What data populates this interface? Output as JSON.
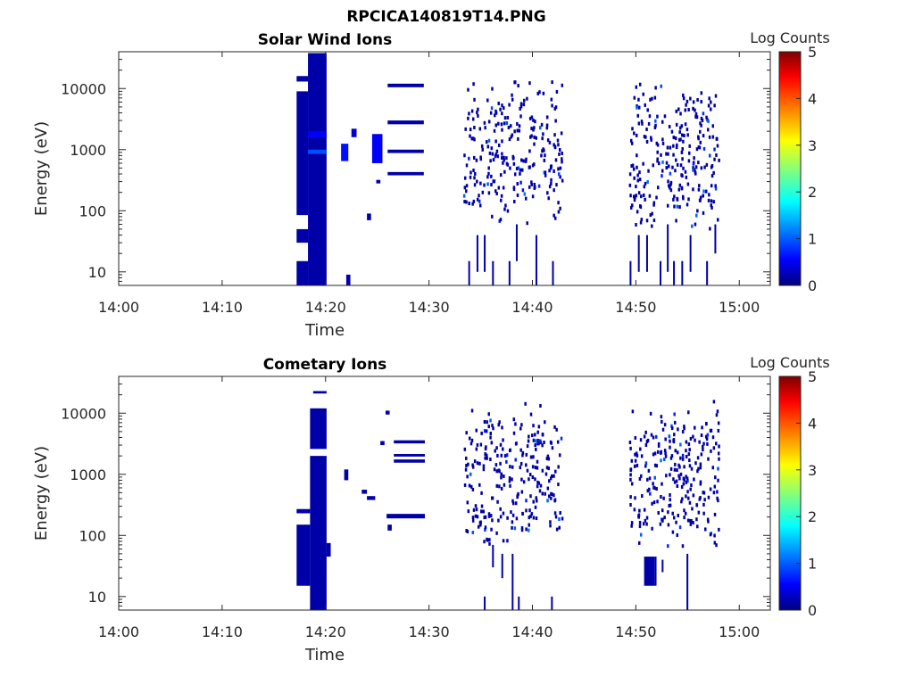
{
  "figure_title": "RPCICA140819T14.PNG",
  "chart_data": [
    {
      "type": "heatmap",
      "title": "Solar Wind Ions",
      "xlabel": "Time",
      "ylabel": "Energy (eV)",
      "x_tick_labels": [
        "14:00",
        "14:10",
        "14:20",
        "14:30",
        "14:40",
        "14:50",
        "15:00"
      ],
      "y_tick_labels": [
        "10",
        "100",
        "1000",
        "10000"
      ],
      "y_scale": "log",
      "xlim_minutes": [
        0,
        63
      ],
      "ylim_ev": [
        6,
        40000
      ],
      "colorbar": {
        "label": "Log Counts",
        "ticks": [
          "0",
          "1",
          "2",
          "3",
          "4",
          "5"
        ],
        "range": [
          0,
          5
        ],
        "colormap": "jet"
      },
      "cells": [
        {
          "t0": 17.2,
          "t1": 18.3,
          "e0": 6,
          "e1": 15,
          "v": 0.2
        },
        {
          "t0": 17.2,
          "t1": 18.3,
          "e0": 30,
          "e1": 50,
          "v": 0.2
        },
        {
          "t0": 17.2,
          "t1": 18.3,
          "e0": 85,
          "e1": 9000,
          "v": 0.2
        },
        {
          "t0": 17.2,
          "t1": 18.3,
          "e0": 13000,
          "e1": 16000,
          "v": 0.2
        },
        {
          "t0": 18.3,
          "t1": 20.1,
          "e0": 6,
          "e1": 38000,
          "v": 0.2
        },
        {
          "t0": 18.3,
          "t1": 20.1,
          "e0": 850,
          "e1": 1000,
          "v": 1.0
        },
        {
          "t0": 18.3,
          "t1": 20.1,
          "e0": 1600,
          "e1": 2000,
          "v": 0.6
        },
        {
          "t0": 21.5,
          "t1": 22.2,
          "e0": 650,
          "e1": 1250,
          "v": 0.7
        },
        {
          "t0": 22.5,
          "t1": 23.0,
          "e0": 1600,
          "e1": 2200,
          "v": 0.4
        },
        {
          "t0": 24.5,
          "t1": 25.5,
          "e0": 600,
          "e1": 1800,
          "v": 0.6
        },
        {
          "t0": 26.0,
          "t1": 29.5,
          "e0": 10500,
          "e1": 12000,
          "v": 0.2
        },
        {
          "t0": 26.0,
          "t1": 29.5,
          "e0": 2600,
          "e1": 3000,
          "v": 0.2
        },
        {
          "t0": 26.0,
          "t1": 29.5,
          "e0": 880,
          "e1": 1000,
          "v": 0.2
        },
        {
          "t0": 26.0,
          "t1": 29.5,
          "e0": 380,
          "e1": 430,
          "v": 0.2
        },
        {
          "t0": 22.0,
          "t1": 22.4,
          "e0": 6,
          "e1": 9,
          "v": 0.2
        },
        {
          "t0": 24.0,
          "t1": 24.4,
          "e0": 70,
          "e1": 90,
          "v": 0.2
        },
        {
          "t0": 24.9,
          "t1": 25.3,
          "e0": 280,
          "e1": 320,
          "v": 0.2
        }
      ],
      "scatter_regions": [
        {
          "t0": 33.3,
          "t1": 42.8,
          "seed": 11
        },
        {
          "t0": 49.3,
          "t1": 58.0,
          "seed": 29
        }
      ],
      "low_energy_streaks": [
        {
          "t": 33.8,
          "e0": 6,
          "e1": 15
        },
        {
          "t": 34.6,
          "e0": 10,
          "e1": 40
        },
        {
          "t": 35.3,
          "e0": 10,
          "e1": 40
        },
        {
          "t": 36.1,
          "e0": 6,
          "e1": 15
        },
        {
          "t": 37.7,
          "e0": 6,
          "e1": 15
        },
        {
          "t": 38.4,
          "e0": 15,
          "e1": 60
        },
        {
          "t": 40.3,
          "e0": 6,
          "e1": 40
        },
        {
          "t": 41.9,
          "e0": 6,
          "e1": 15
        },
        {
          "t": 49.4,
          "e0": 6,
          "e1": 15
        },
        {
          "t": 50.2,
          "e0": 10,
          "e1": 40
        },
        {
          "t": 51.0,
          "e0": 10,
          "e1": 40
        },
        {
          "t": 52.3,
          "e0": 6,
          "e1": 15
        },
        {
          "t": 53.0,
          "e0": 10,
          "e1": 60
        },
        {
          "t": 53.6,
          "e0": 6,
          "e1": 15
        },
        {
          "t": 54.4,
          "e0": 6,
          "e1": 15
        },
        {
          "t": 55.2,
          "e0": 10,
          "e1": 40
        },
        {
          "t": 56.8,
          "e0": 6,
          "e1": 15
        },
        {
          "t": 57.6,
          "e0": 20,
          "e1": 60
        }
      ]
    },
    {
      "type": "heatmap",
      "title": "Cometary Ions",
      "xlabel": "Time",
      "ylabel": "Energy (eV)",
      "x_tick_labels": [
        "14:00",
        "14:10",
        "14:20",
        "14:30",
        "14:40",
        "14:50",
        "15:00"
      ],
      "y_tick_labels": [
        "10",
        "100",
        "1000",
        "10000"
      ],
      "y_scale": "log",
      "xlim_minutes": [
        0,
        63
      ],
      "ylim_ev": [
        6,
        40000
      ],
      "colorbar": {
        "label": "Log Counts",
        "ticks": [
          "0",
          "1",
          "2",
          "3",
          "4",
          "5"
        ],
        "range": [
          0,
          5
        ],
        "colormap": "jet"
      },
      "cells": [
        {
          "t0": 17.2,
          "t1": 18.5,
          "e0": 15,
          "e1": 150,
          "v": 0.2
        },
        {
          "t0": 17.2,
          "t1": 18.5,
          "e0": 230,
          "e1": 270,
          "v": 0.2
        },
        {
          "t0": 18.5,
          "t1": 20.1,
          "e0": 6,
          "e1": 2000,
          "v": 0.2
        },
        {
          "t0": 18.5,
          "t1": 20.1,
          "e0": 2600,
          "e1": 12000,
          "v": 0.2
        },
        {
          "t0": 18.8,
          "t1": 20.1,
          "e0": 21000,
          "e1": 23000,
          "v": 0.2
        },
        {
          "t0": 20.1,
          "t1": 20.5,
          "e0": 45,
          "e1": 75,
          "v": 0.2
        },
        {
          "t0": 21.8,
          "t1": 22.2,
          "e0": 800,
          "e1": 1200,
          "v": 0.2
        },
        {
          "t0": 23.5,
          "t1": 24.0,
          "e0": 480,
          "e1": 560,
          "v": 0.2
        },
        {
          "t0": 24.0,
          "t1": 24.8,
          "e0": 380,
          "e1": 440,
          "v": 0.2
        },
        {
          "t0": 25.8,
          "t1": 26.2,
          "e0": 9500,
          "e1": 11000,
          "v": 0.2
        },
        {
          "t0": 25.3,
          "t1": 25.7,
          "e0": 3000,
          "e1": 3500,
          "v": 0.2
        },
        {
          "t0": 26.0,
          "t1": 26.4,
          "e0": 120,
          "e1": 150,
          "v": 0.2
        },
        {
          "t0": 26.6,
          "t1": 29.6,
          "e0": 3200,
          "e1": 3600,
          "v": 0.2
        },
        {
          "t0": 26.6,
          "t1": 29.6,
          "e0": 1950,
          "e1": 2150,
          "v": 0.2
        },
        {
          "t0": 26.6,
          "t1": 29.6,
          "e0": 1550,
          "e1": 1750,
          "v": 0.2
        },
        {
          "t0": 25.9,
          "t1": 29.6,
          "e0": 190,
          "e1": 225,
          "v": 0.2
        },
        {
          "t0": 50.8,
          "t1": 51.8,
          "e0": 15,
          "e1": 45,
          "v": 0.2
        },
        {
          "t0": 51.8,
          "t1": 52.0,
          "e0": 15,
          "e1": 45,
          "v": 0.2
        }
      ],
      "scatter_regions": [
        {
          "t0": 33.3,
          "t1": 42.8,
          "seed": 53
        },
        {
          "t0": 49.3,
          "t1": 58.0,
          "seed": 71
        }
      ],
      "low_energy_streaks": [
        {
          "t": 35.3,
          "e0": 6,
          "e1": 10
        },
        {
          "t": 36.1,
          "e0": 30,
          "e1": 70
        },
        {
          "t": 37.0,
          "e0": 20,
          "e1": 50
        },
        {
          "t": 38.0,
          "e0": 6,
          "e1": 50
        },
        {
          "t": 38.6,
          "e0": 6,
          "e1": 10
        },
        {
          "t": 41.8,
          "e0": 6,
          "e1": 10
        },
        {
          "t": 54.9,
          "e0": 6,
          "e1": 50
        },
        {
          "t": 52.5,
          "e0": 25,
          "e1": 40
        }
      ]
    }
  ]
}
